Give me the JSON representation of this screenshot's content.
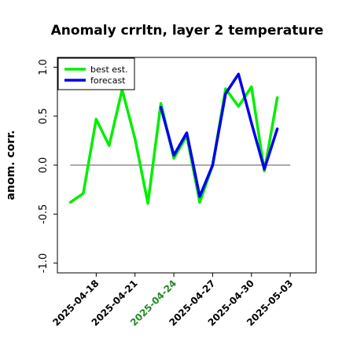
{
  "chart_data": {
    "type": "line",
    "title": "Anomaly crrltn, layer 2 temperature",
    "ylabel": "anom. corr.",
    "xlabel": "",
    "ylim": [
      -1.1,
      1.1
    ],
    "yticks": [
      -1.0,
      -0.5,
      0.0,
      0.5,
      1.0
    ],
    "ytick_labels": [
      "-1.0",
      "-0.5",
      "0.0",
      "0.5",
      "1.0"
    ],
    "x": [
      "2025-04-16",
      "2025-04-17",
      "2025-04-18",
      "2025-04-19",
      "2025-04-20",
      "2025-04-21",
      "2025-04-22",
      "2025-04-23",
      "2025-04-24",
      "2025-04-25",
      "2025-04-26",
      "2025-04-27",
      "2025-04-28",
      "2025-04-29",
      "2025-04-30",
      "2025-05-01",
      "2025-05-02",
      "2025-05-03"
    ],
    "xlim": [
      "2025-04-15",
      "2025-05-05"
    ],
    "xtick_labels": [
      "2025-04-18",
      "2025-04-21",
      "2025-04-24",
      "2025-04-27",
      "2025-04-30",
      "2025-05-03"
    ],
    "highlight_tick": "2025-04-24",
    "highlight_color": "#228b22",
    "reference_line": 0.0,
    "legend_position": "top-left",
    "series": [
      {
        "name": "best est.",
        "color": "#00ee00",
        "values": [
          -0.38,
          -0.29,
          0.47,
          0.2,
          0.77,
          0.27,
          -0.39,
          0.63,
          0.07,
          0.3,
          -0.38,
          0.0,
          0.78,
          0.6,
          0.8,
          -0.06,
          0.69,
          null
        ]
      },
      {
        "name": "forecast",
        "color": "#0000ee",
        "values": [
          null,
          null,
          null,
          null,
          null,
          null,
          null,
          0.59,
          0.1,
          0.33,
          -0.32,
          0.0,
          0.73,
          0.93,
          0.43,
          -0.04,
          0.37,
          null
        ]
      }
    ]
  }
}
